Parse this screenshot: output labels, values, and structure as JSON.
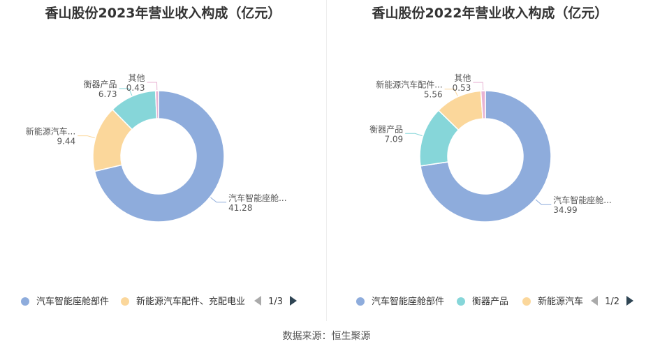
{
  "source": "数据来源：恒生聚源",
  "colors": {
    "blue": "#8eacdc",
    "teal": "#86d6d9",
    "yellow": "#fbd79b",
    "pink": "#e8b3d3"
  },
  "chart_data": [
    {
      "type": "pie",
      "title": "香山股份2023年营业收入构成（亿元）",
      "slices": [
        {
          "label": "汽车智能座舱...",
          "value": 41.28,
          "color": "#8eacdc"
        },
        {
          "label": "新能源汽车...",
          "value": 9.44,
          "color": "#fbd79b"
        },
        {
          "label": "衡器产品",
          "value": 6.73,
          "color": "#86d6d9"
        },
        {
          "label": "其他",
          "value": 0.43,
          "color": "#e8b3d3"
        }
      ],
      "legend": {
        "items": [
          {
            "label": "汽车智能座舱部件",
            "color": "#8eacdc"
          },
          {
            "label": "新能源汽车配件、充配电业",
            "color": "#fbd79b"
          }
        ],
        "page": "1/3"
      }
    },
    {
      "type": "pie",
      "title": "香山股份2022年营业收入构成（亿元）",
      "slices": [
        {
          "label": "汽车智能座舱...",
          "value": 34.99,
          "color": "#8eacdc"
        },
        {
          "label": "衡器产品",
          "value": 7.09,
          "color": "#86d6d9"
        },
        {
          "label": "新能源汽车配件...",
          "value": 5.56,
          "color": "#fbd79b"
        },
        {
          "label": "其他",
          "value": 0.53,
          "color": "#e8b3d3"
        }
      ],
      "legend": {
        "items": [
          {
            "label": "汽车智能座舱部件",
            "color": "#8eacdc"
          },
          {
            "label": "衡器产品",
            "color": "#86d6d9"
          },
          {
            "label": "新能源汽车",
            "color": "#fbd79b"
          }
        ],
        "page": "1/2"
      }
    }
  ]
}
